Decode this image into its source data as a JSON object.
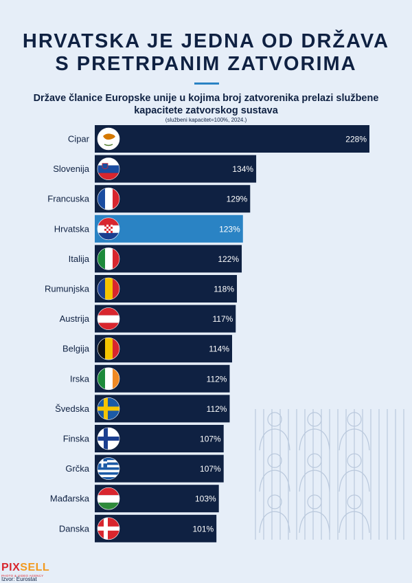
{
  "header": {
    "title_line1": "HRVATSKA JE JEDNA OD DRŽAVA",
    "title_line2": "S PRETRPANIM ZATVORIMA",
    "subtitle_line1": "Države članice Europske unije u kojima broj zatvorenika prelazi službene",
    "subtitle_line2": "kapacitete zatvorskog sustava",
    "note": "(službeni kapacitet=100%, 2024.)"
  },
  "footer": {
    "logo_pix": "PIX",
    "logo_sell": "SELL",
    "logo_tagline": "PHOTO & VIDEO AGENCY",
    "source": "Izvor: Eurostat"
  },
  "colors": {
    "bar": "#0f2142",
    "highlight": "#2a83c4",
    "background": "#e6eef8"
  },
  "chart_data": {
    "type": "bar",
    "orientation": "horizontal",
    "unit": "%",
    "categories": [
      "Cipar",
      "Slovenija",
      "Francuska",
      "Hrvatska",
      "Italija",
      "Rumunjska",
      "Austrija",
      "Belgija",
      "Irska",
      "Švedska",
      "Finska",
      "Grčka",
      "Mađarska",
      "Danska"
    ],
    "values": [
      228,
      134,
      129,
      123,
      122,
      118,
      117,
      114,
      112,
      112,
      107,
      107,
      103,
      101
    ],
    "labels": [
      "228%",
      "134%",
      "129%",
      "123%",
      "122%",
      "118%",
      "117%",
      "114%",
      "112%",
      "112%",
      "107%",
      "107%",
      "103%",
      "101%"
    ],
    "highlight": "Hrvatska",
    "flags": [
      "cyprus-flag",
      "slovenia-flag",
      "france-flag",
      "croatia-flag",
      "italy-flag",
      "romania-flag",
      "austria-flag",
      "belgium-flag",
      "ireland-flag",
      "sweden-flag",
      "finland-flag",
      "greece-flag",
      "hungary-flag",
      "denmark-flag"
    ],
    "xlim": [
      0,
      228
    ],
    "grid": false,
    "legend": "none"
  }
}
